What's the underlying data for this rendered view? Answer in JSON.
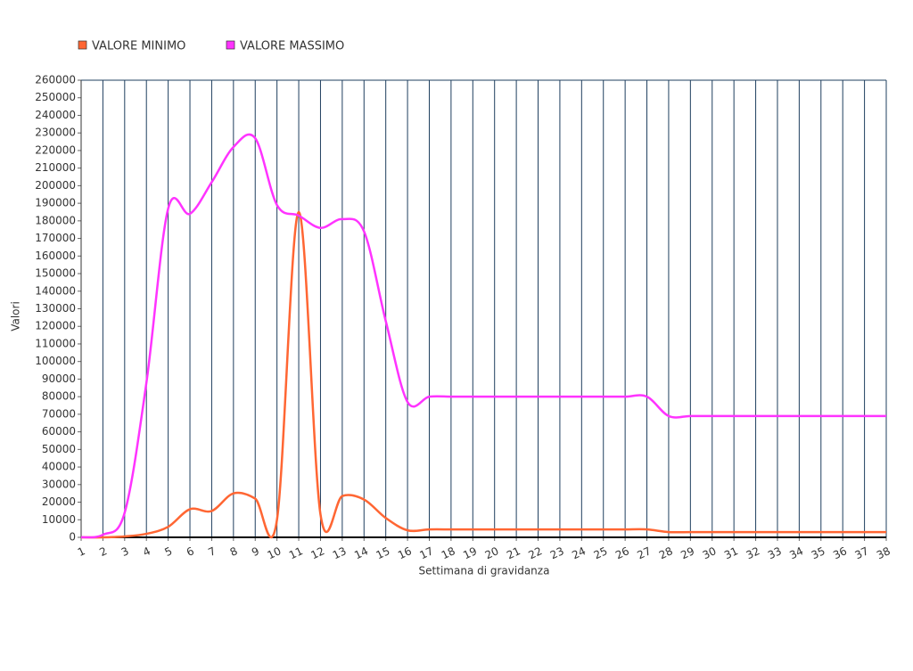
{
  "chart_data": {
    "type": "line",
    "categories": [
      "1",
      "2",
      "3",
      "4",
      "5",
      "6",
      "7",
      "8",
      "9",
      "10",
      "11",
      "12",
      "13",
      "14",
      "15",
      "16",
      "17",
      "18",
      "19",
      "20",
      "21",
      "22",
      "23",
      "24",
      "25",
      "26",
      "27",
      "28",
      "29",
      "30",
      "31",
      "32",
      "33",
      "34",
      "35",
      "36",
      "37",
      "38"
    ],
    "series": [
      {
        "name": "VALORE MINIMO",
        "color": "#ff6633",
        "values": [
          0,
          0,
          500,
          2000,
          6000,
          16000,
          15000,
          25000,
          22000,
          10000,
          185000,
          13000,
          23500,
          21500,
          11000,
          4000,
          4500,
          4500,
          4500,
          4500,
          4500,
          4500,
          4500,
          4500,
          4500,
          4500,
          4500,
          3000,
          3000,
          3000,
          3000,
          3000,
          3000,
          3000,
          3000,
          3000,
          3000,
          3000
        ]
      },
      {
        "name": "VALORE MASSIMO",
        "color": "#ff33ff",
        "values": [
          0,
          1500,
          14000,
          88000,
          187000,
          184000,
          202000,
          222000,
          227000,
          189000,
          183000,
          176000,
          181000,
          174000,
          123000,
          77000,
          80000,
          80000,
          80000,
          80000,
          80000,
          80000,
          80000,
          80000,
          80000,
          80000,
          80000,
          69000,
          69000,
          69000,
          69000,
          69000,
          69000,
          69000,
          69000,
          69000,
          69000,
          69000
        ]
      }
    ],
    "ylim": [
      0,
      260000
    ],
    "yticks": [
      0,
      10000,
      20000,
      30000,
      40000,
      50000,
      60000,
      70000,
      80000,
      90000,
      100000,
      110000,
      120000,
      130000,
      140000,
      150000,
      160000,
      170000,
      180000,
      190000,
      200000,
      210000,
      220000,
      230000,
      240000,
      250000,
      260000
    ],
    "ylabel": "Valori",
    "xlabel": "Settimana di gravidanza",
    "grid": true
  }
}
